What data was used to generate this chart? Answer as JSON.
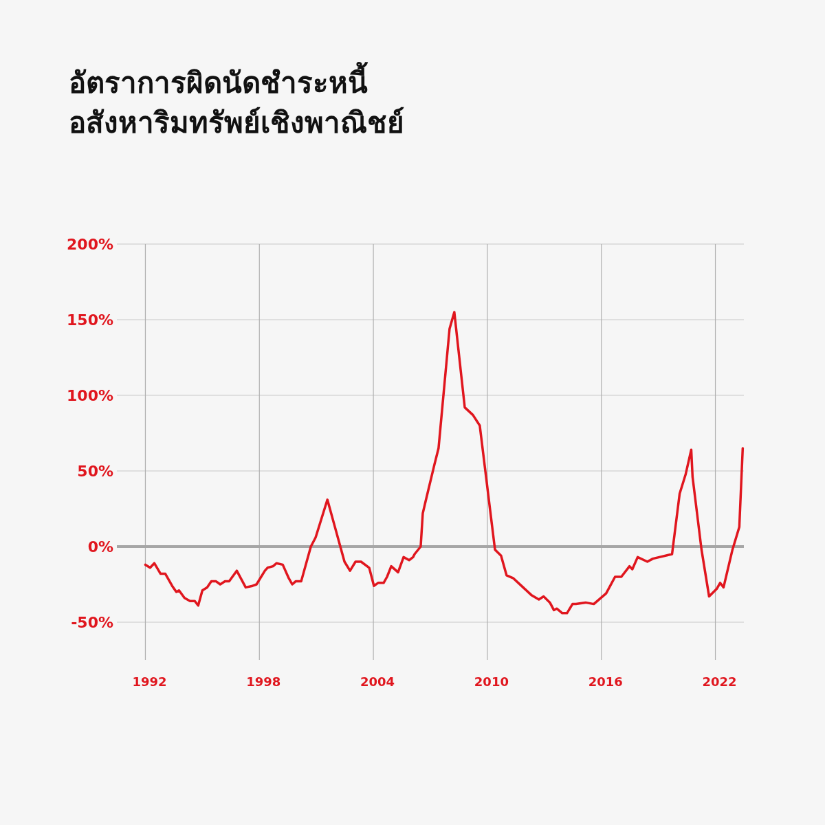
{
  "chart_data": {
    "type": "line",
    "title": "อัตราการผิดนัดชำระหนี้\nอสังหาริมทรัพย์เชิงพาณิชย์",
    "x": [
      1992.0,
      1992.25,
      1992.47,
      1992.8,
      1993.05,
      1993.41,
      1993.63,
      1993.77,
      1994.06,
      1994.35,
      1994.6,
      1994.78,
      1995.0,
      1995.25,
      1995.47,
      1995.72,
      1995.94,
      1996.19,
      1996.41,
      1996.81,
      1997.28,
      1997.64,
      1997.85,
      1998.29,
      1998.43,
      1998.72,
      1998.9,
      1999.23,
      1999.55,
      1999.73,
      1999.91,
      2000.2,
      2000.71,
      2000.96,
      2001.58,
      2002.48,
      2002.77,
      2003.06,
      2003.35,
      2003.78,
      2004.03,
      2004.25,
      2004.54,
      2004.72,
      2004.94,
      2005.3,
      2005.59,
      2005.88,
      2006.09,
      2006.17,
      2006.49,
      2006.6,
      2006.75,
      2007.21,
      2007.43,
      2008.01,
      2008.26,
      2008.81,
      2009.24,
      2009.6,
      2010.4,
      2010.72,
      2011.01,
      2011.37,
      2012.31,
      2012.71,
      2012.96,
      2013.29,
      2013.5,
      2013.65,
      2013.94,
      2014.19,
      2014.48,
      2014.66,
      2015.17,
      2015.6,
      2016.25,
      2016.72,
      2017.05,
      2017.48,
      2017.63,
      2017.91,
      2018.42,
      2018.71,
      2019.72,
      2020.12,
      2020.44,
      2020.73,
      2020.8,
      2021.27,
      2021.67,
      2022.07,
      2022.25,
      2022.43,
      2022.9,
      2023.26,
      2023.44
    ],
    "series": [
      {
        "color": "#e0161e",
        "values": [
          -12,
          -14,
          -11,
          -18,
          -18,
          -26,
          -30,
          -29,
          -34,
          -36,
          -36,
          -39,
          -29,
          -27,
          -23,
          -23,
          -25,
          -23,
          -23,
          -16,
          -27,
          -26,
          -25,
          -16,
          -14,
          -13,
          -11,
          -12,
          -21,
          -25,
          -23,
          -23,
          0,
          6,
          31,
          -10,
          -16,
          -10,
          -10,
          -14,
          -26,
          -24,
          -24,
          -20,
          -13,
          -17,
          -7,
          -9,
          -7,
          -5,
          0,
          22,
          30,
          54,
          65,
          144,
          155,
          92,
          87,
          80,
          -2,
          -6,
          -19,
          -21,
          -32,
          -35,
          -33,
          -37,
          -42,
          -41,
          -44,
          -44,
          -38,
          -38,
          -37,
          -38,
          -31,
          -20,
          -20,
          -13,
          -15,
          -7,
          -10,
          -8,
          -5,
          35,
          48,
          64,
          46,
          -2,
          -33,
          -28,
          -24,
          -27,
          -2,
          13,
          65
        ]
      }
    ],
    "xlim": [
      1990.5,
      2023.5
    ],
    "ylim": [
      -75,
      200
    ],
    "xticks": [
      1992,
      1998,
      2004,
      2010,
      2016,
      2022
    ],
    "yticks": [
      {
        "value": 200,
        "label": "200%"
      },
      {
        "value": 150,
        "label": "150%"
      },
      {
        "value": 100,
        "label": "100%"
      },
      {
        "value": 50,
        "label": "50%"
      },
      {
        "value": 0,
        "label": "0%"
      },
      {
        "value": -50,
        "label": "-50%"
      }
    ],
    "ref_lines": [
      {
        "axis": "y",
        "value": 0,
        "color": "#a6a6a6"
      }
    ],
    "grid": true,
    "marker": "none",
    "line_style": "solid"
  }
}
